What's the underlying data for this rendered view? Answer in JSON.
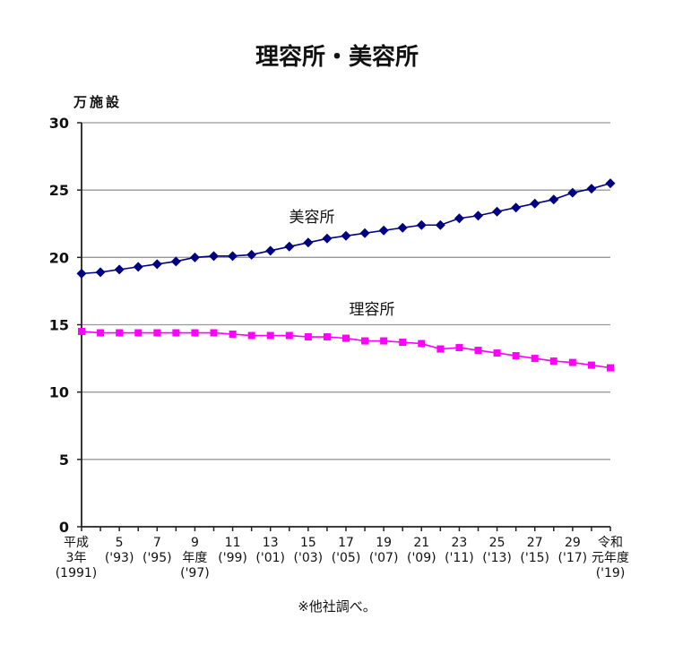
{
  "chart_data": {
    "type": "line",
    "title": "理容所・美容所",
    "ylabel": "万施設",
    "xlabel": "",
    "ylim": [
      0,
      30
    ],
    "yticks": [
      0,
      5,
      10,
      15,
      20,
      25,
      30
    ],
    "grid": true,
    "x": [
      1991,
      1992,
      1993,
      1994,
      1995,
      1996,
      1997,
      1998,
      1999,
      2000,
      2001,
      2002,
      2003,
      2004,
      2005,
      2006,
      2007,
      2008,
      2009,
      2010,
      2011,
      2012,
      2013,
      2014,
      2015,
      2016,
      2017,
      2018,
      2019
    ],
    "xtick_labels": [
      {
        "year": 1991,
        "lines": [
          "平成",
          "3年",
          "(1991)"
        ]
      },
      {
        "year": 1993,
        "lines": [
          "5",
          "('93)"
        ]
      },
      {
        "year": 1995,
        "lines": [
          "7",
          "('95)"
        ]
      },
      {
        "year": 1997,
        "lines": [
          "9",
          "年度",
          "('97)"
        ]
      },
      {
        "year": 1999,
        "lines": [
          "11",
          "('99)"
        ]
      },
      {
        "year": 2001,
        "lines": [
          "13",
          "('01)"
        ]
      },
      {
        "year": 2003,
        "lines": [
          "15",
          "('03)"
        ]
      },
      {
        "year": 2005,
        "lines": [
          "17",
          "('05)"
        ]
      },
      {
        "year": 2007,
        "lines": [
          "19",
          "('07)"
        ]
      },
      {
        "year": 2009,
        "lines": [
          "21",
          "('09)"
        ]
      },
      {
        "year": 2011,
        "lines": [
          "23",
          "('11)"
        ]
      },
      {
        "year": 2013,
        "lines": [
          "25",
          "('13)"
        ]
      },
      {
        "year": 2015,
        "lines": [
          "27",
          "('15)"
        ]
      },
      {
        "year": 2017,
        "lines": [
          "29",
          "('17)"
        ]
      },
      {
        "year": 2019,
        "lines": [
          "令和",
          "元年度",
          "('19)"
        ]
      }
    ],
    "series": [
      {
        "name": "美容所",
        "color": "#000080",
        "marker": "diamond",
        "values": [
          18.8,
          18.9,
          19.1,
          19.3,
          19.5,
          19.7,
          20.0,
          20.1,
          20.1,
          20.2,
          20.5,
          20.8,
          21.1,
          21.4,
          21.6,
          21.8,
          22.0,
          22.2,
          22.4,
          22.4,
          22.9,
          23.1,
          23.4,
          23.7,
          24.0,
          24.3,
          24.8,
          25.1,
          25.5
        ]
      },
      {
        "name": "理容所",
        "color": "#ff00ff",
        "marker": "square",
        "values": [
          14.5,
          14.4,
          14.4,
          14.4,
          14.4,
          14.4,
          14.4,
          14.4,
          14.3,
          14.2,
          14.2,
          14.2,
          14.1,
          14.1,
          14.0,
          13.8,
          13.8,
          13.7,
          13.6,
          13.2,
          13.3,
          13.1,
          12.9,
          12.7,
          12.5,
          12.3,
          12.2,
          12.0,
          11.8
        ]
      }
    ],
    "footnote": "※他社調べ。"
  }
}
